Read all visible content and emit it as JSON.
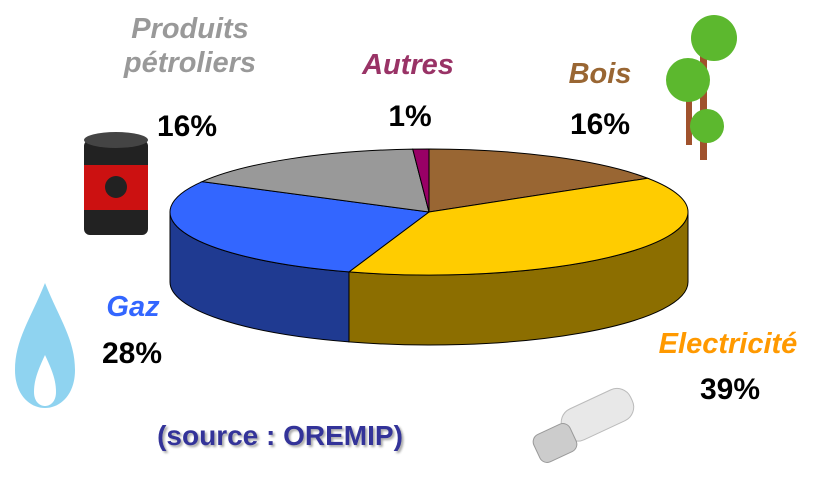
{
  "chart_data": {
    "type": "pie",
    "categories": [
      "Bois",
      "Electricité",
      "Gaz",
      "Produits pétroliers",
      "Autres"
    ],
    "values": [
      16,
      39,
      28,
      16,
      1
    ],
    "value_labels": [
      "16%",
      "39%",
      "28%",
      "16%",
      "1%"
    ],
    "colors": [
      "#996633",
      "#ffcc00",
      "#3366ff",
      "#999999",
      "#990066"
    ],
    "side_colors": [
      "#6e4a25",
      "#8c6e00",
      "#1f3a91",
      "#666666",
      "#660044"
    ],
    "label_colors": [
      "#996633",
      "#ff9900",
      "#3366ff",
      "#999999",
      "#993366"
    ],
    "annotation": "(source : OREMIP)"
  }
}
